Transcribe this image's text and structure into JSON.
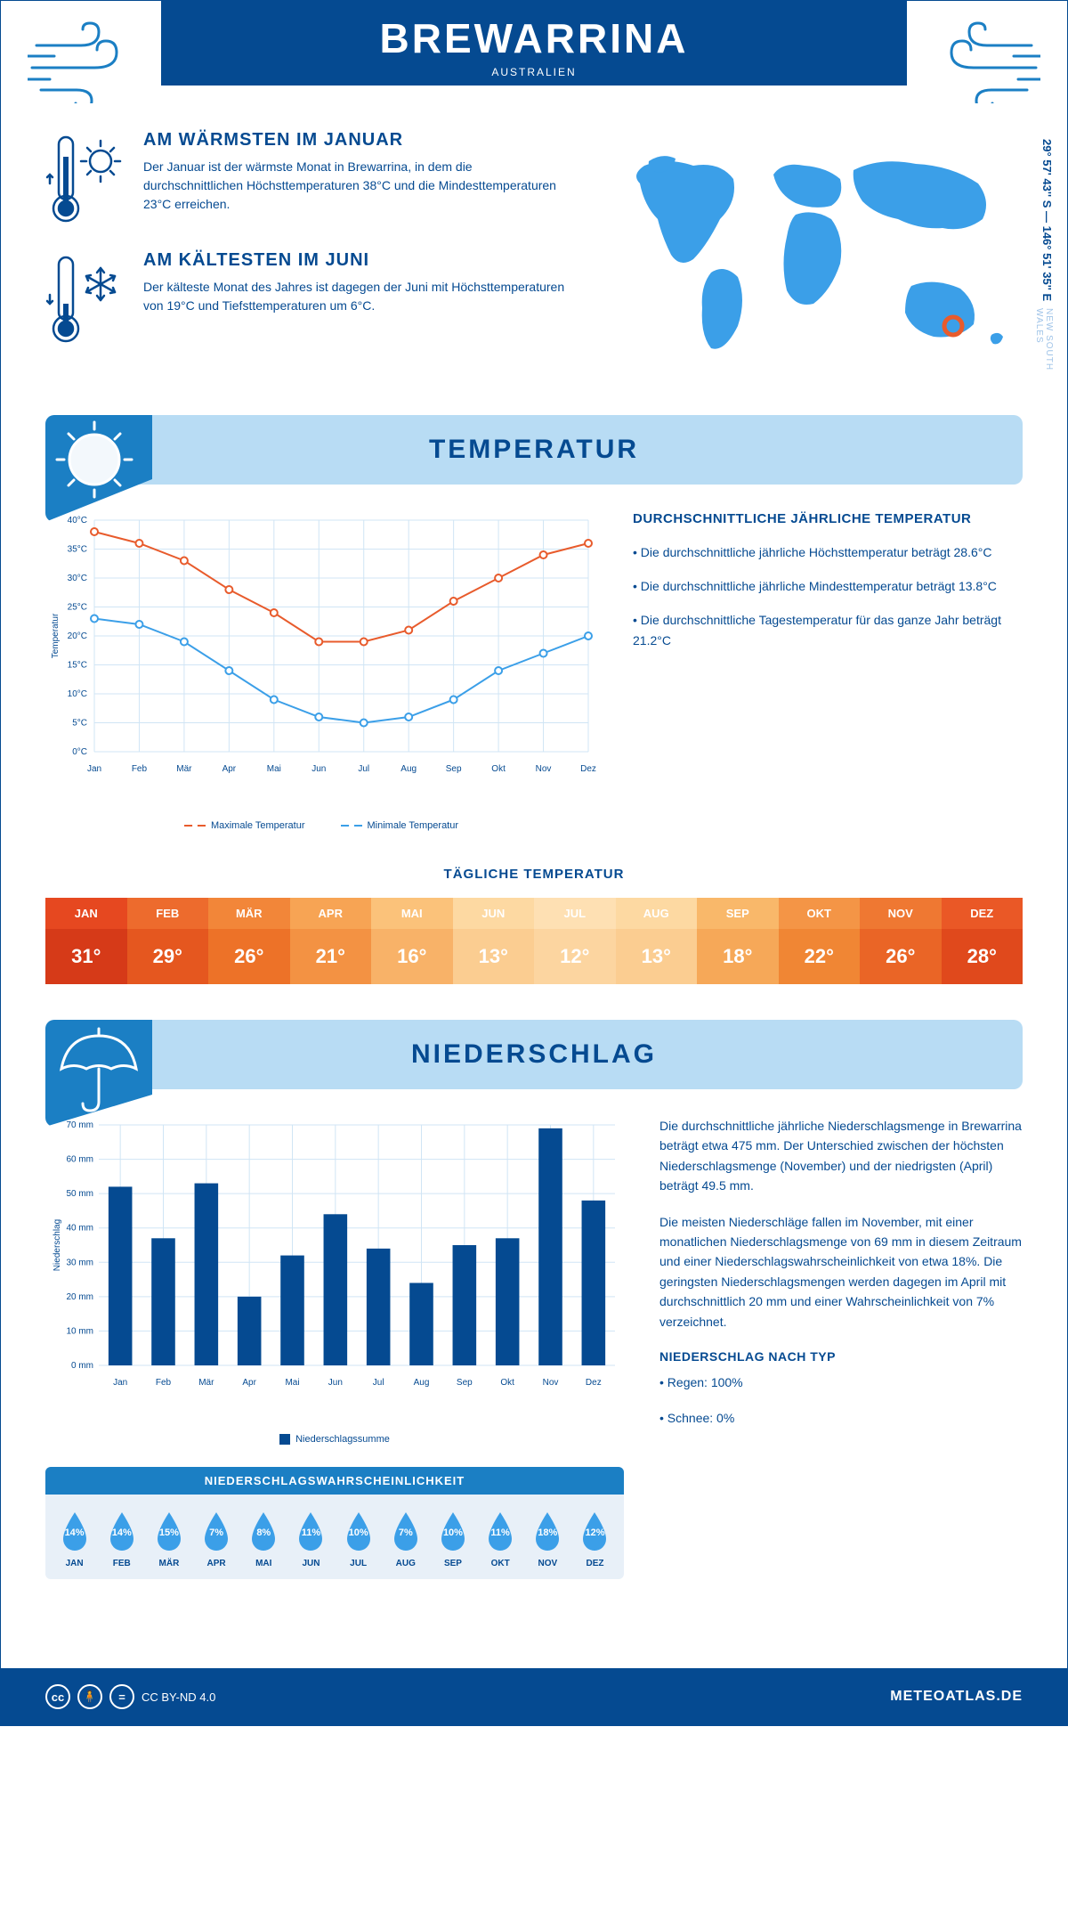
{
  "header": {
    "city": "BREWARRINA",
    "country": "AUSTRALIEN",
    "coords": "29° 57' 43'' S — 146° 51' 35'' E",
    "region": "NEW SOUTH WALES"
  },
  "warm": {
    "title": "AM WÄRMSTEN IM JANUAR",
    "text": "Der Januar ist der wärmste Monat in Brewarrina, in dem die durchschnittlichen Höchsttemperaturen 38°C und die Mindesttemperaturen 23°C erreichen."
  },
  "cold": {
    "title": "AM KÄLTESTEN IM JUNI",
    "text": "Der kälteste Monat des Jahres ist dagegen der Juni mit Höchsttemperaturen von 19°C und Tiefsttemperaturen um 6°C."
  },
  "temp_section": {
    "title": "TEMPERATUR"
  },
  "precip_section": {
    "title": "NIEDERSCHLAG"
  },
  "temp_chart": {
    "type": "line",
    "months": [
      "Jan",
      "Feb",
      "Mär",
      "Apr",
      "Mai",
      "Jun",
      "Jul",
      "Aug",
      "Sep",
      "Okt",
      "Nov",
      "Dez"
    ],
    "max": [
      38,
      36,
      33,
      28,
      24,
      19,
      19,
      21,
      26,
      30,
      34,
      36
    ],
    "min": [
      23,
      22,
      19,
      14,
      9,
      6,
      5,
      6,
      9,
      14,
      17,
      20
    ],
    "ylabel": "Temperatur",
    "ylim": [
      0,
      40
    ],
    "ytick_step": 5,
    "max_color": "#e85b2c",
    "min_color": "#3b9fe8",
    "grid_color": "#d0e5f5",
    "bg": "#ffffff",
    "line_width": 2,
    "marker": "circle",
    "marker_size": 4,
    "legend": {
      "max": "Maximale Temperatur",
      "min": "Minimale Temperatur"
    },
    "label_fontsize": 10
  },
  "temp_text": {
    "title": "DURCHSCHNITTLICHE JÄHRLICHE TEMPERATUR",
    "p1": "• Die durchschnittliche jährliche Höchsttemperatur beträgt 28.6°C",
    "p2": "• Die durchschnittliche jährliche Mindesttemperatur beträgt 13.8°C",
    "p3": "• Die durchschnittliche Tagestemperatur für das ganze Jahr beträgt 21.2°C"
  },
  "daily": {
    "title": "TÄGLICHE TEMPERATUR",
    "months": [
      "JAN",
      "FEB",
      "MÄR",
      "APR",
      "MAI",
      "JUN",
      "JUL",
      "AUG",
      "SEP",
      "OKT",
      "NOV",
      "DEZ"
    ],
    "temps": [
      "31°",
      "29°",
      "26°",
      "21°",
      "16°",
      "13°",
      "12°",
      "13°",
      "18°",
      "22°",
      "26°",
      "28°"
    ],
    "head_colors": [
      "#e64820",
      "#ed6b2d",
      "#f28639",
      "#f7a454",
      "#fbc27a",
      "#fdd9a2",
      "#fee0b3",
      "#fdd9a2",
      "#f9b86a",
      "#f49546",
      "#ef7832",
      "#ea5826"
    ],
    "body_colors": [
      "#d63a18",
      "#e5571f",
      "#ed7228",
      "#f39243",
      "#f8b268",
      "#fbcd91",
      "#fcd5a0",
      "#fbcd91",
      "#f6a858",
      "#f08634",
      "#ea6526",
      "#e0491c"
    ]
  },
  "precip_chart": {
    "type": "bar",
    "months": [
      "Jan",
      "Feb",
      "Mär",
      "Apr",
      "Mai",
      "Jun",
      "Jul",
      "Aug",
      "Sep",
      "Okt",
      "Nov",
      "Dez"
    ],
    "values": [
      52,
      37,
      53,
      20,
      32,
      44,
      34,
      24,
      35,
      37,
      69,
      48
    ],
    "ylabel": "Niederschlag",
    "ylim": [
      0,
      70
    ],
    "ytick_step": 10,
    "ytick_suffix": " mm",
    "bar_color": "#054a91",
    "grid_color": "#d0e5f5",
    "bg": "#ffffff",
    "bar_width": 0.55,
    "legend": "Niederschlagssumme",
    "label_fontsize": 10
  },
  "precip_text": {
    "p1": "Die durchschnittliche jährliche Niederschlagsmenge in Brewarrina beträgt etwa 475 mm. Der Unterschied zwischen der höchsten Niederschlagsmenge (November) und der niedrigsten (April) beträgt 49.5 mm.",
    "p2": "Die meisten Niederschläge fallen im November, mit einer monatlichen Niederschlagsmenge von 69 mm in diesem Zeitraum und einer Niederschlagswahrscheinlichkeit von etwa 18%. Die geringsten Niederschlagsmengen werden dagegen im April mit durchschnittlich 20 mm und einer Wahrscheinlichkeit von 7% verzeichnet.",
    "type_title": "NIEDERSCHLAG NACH TYP",
    "rain": "• Regen: 100%",
    "snow": "• Schnee: 0%"
  },
  "prob": {
    "title": "NIEDERSCHLAGSWAHRSCHEINLICHKEIT",
    "months": [
      "JAN",
      "FEB",
      "MÄR",
      "APR",
      "MAI",
      "JUN",
      "JUL",
      "AUG",
      "SEP",
      "OKT",
      "NOV",
      "DEZ"
    ],
    "values": [
      "14%",
      "14%",
      "15%",
      "7%",
      "8%",
      "11%",
      "10%",
      "7%",
      "10%",
      "11%",
      "18%",
      "12%"
    ],
    "drop_color": "#3b9fe8"
  },
  "footer": {
    "license": "CC BY-ND 4.0",
    "brand": "METEOATLAS.DE"
  },
  "colors": {
    "primary": "#054a91",
    "accent": "#3b9fe8",
    "section_bg": "#b8dcf4",
    "marker_red": "#e85b2c"
  }
}
